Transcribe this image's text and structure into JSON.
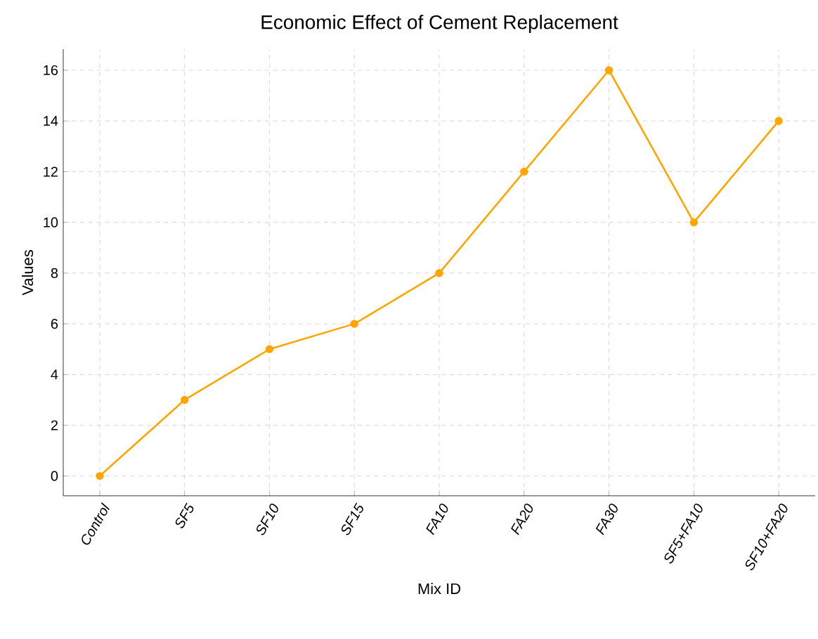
{
  "chart_data": {
    "type": "line",
    "title": "Economic Effect of Cement Replacement",
    "xlabel": "Mix ID",
    "ylabel": "Values",
    "categories": [
      "Control",
      "SF5",
      "SF10",
      "SF15",
      "FA10",
      "FA20",
      "FA30",
      "SF5+FA10",
      "SF10+FA20"
    ],
    "values": [
      0,
      3,
      5,
      6,
      8,
      12,
      16,
      10,
      14
    ],
    "color": "#ffa500",
    "ylim": [
      -0.78,
      16.83
    ],
    "yticks": [
      0,
      2,
      4,
      6,
      8,
      10,
      12,
      14,
      16
    ],
    "grid": true,
    "marker": "circle",
    "line_style": "solid"
  }
}
